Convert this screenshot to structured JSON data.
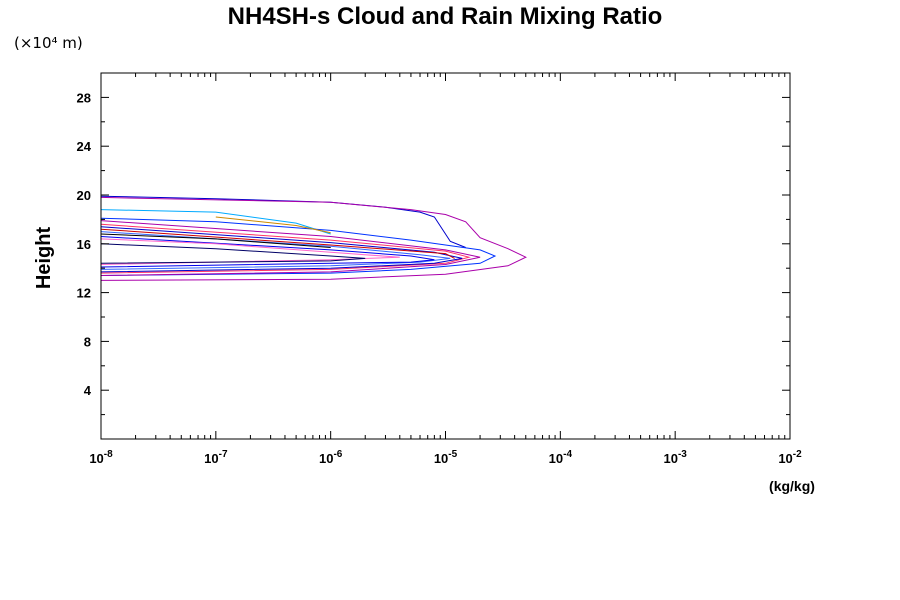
{
  "chart_data": {
    "type": "line",
    "title": "NH4SH-s Cloud and Rain Mixing Ratio",
    "ylabel": "Height",
    "y_scale_label": "(×10⁴ m)",
    "x_unit_label": "(kg/kg)",
    "x_scale": "log",
    "xlim": [
      1e-08,
      0.01
    ],
    "ylim": [
      0,
      30
    ],
    "x_tick_labels": [
      {
        "value": 1e-08,
        "base": "10",
        "exp": "-8"
      },
      {
        "value": 1e-07,
        "base": "10",
        "exp": "-7"
      },
      {
        "value": 1e-06,
        "base": "10",
        "exp": "-6"
      },
      {
        "value": 1e-05,
        "base": "10",
        "exp": "-5"
      },
      {
        "value": 0.0001,
        "base": "10",
        "exp": "-4"
      },
      {
        "value": 0.001,
        "base": "10",
        "exp": "-3"
      },
      {
        "value": 0.01,
        "base": "10",
        "exp": "-2"
      }
    ],
    "y_tick_labels": [
      "4",
      "8",
      "12",
      "16",
      "20",
      "24",
      "28"
    ],
    "y_tick_values": [
      4,
      8,
      12,
      16,
      20,
      24,
      28
    ],
    "grid": false,
    "series": [
      {
        "color": "#0000cc",
        "points": [
          [
            1e-08,
            19.9
          ],
          [
            1e-07,
            19.7
          ],
          [
            1e-06,
            19.4
          ],
          [
            3e-06,
            19.0
          ],
          [
            6e-06,
            18.6
          ],
          [
            8e-06,
            18.2
          ],
          [
            1.1e-05,
            16.2
          ],
          [
            1.5e-05,
            15.7
          ]
        ]
      },
      {
        "color": "#aa00aa",
        "points": [
          [
            1e-08,
            19.8
          ],
          [
            1e-06,
            19.4
          ],
          [
            5e-06,
            18.8
          ],
          [
            1e-05,
            18.4
          ],
          [
            1.5e-05,
            17.8
          ],
          [
            2e-05,
            16.5
          ],
          [
            3.5e-05,
            15.6
          ],
          [
            5e-05,
            14.9
          ],
          [
            3.5e-05,
            14.2
          ],
          [
            1e-05,
            13.5
          ],
          [
            1e-06,
            13.1
          ],
          [
            1e-08,
            13.0
          ]
        ]
      },
      {
        "color": "#00aaff",
        "points": [
          [
            1e-08,
            18.8
          ],
          [
            1e-07,
            18.6
          ],
          [
            5e-07,
            17.7
          ],
          [
            1e-06,
            16.8
          ]
        ]
      },
      {
        "color": "#0033ff",
        "points": [
          [
            1e-08,
            18.1
          ],
          [
            1e-07,
            17.8
          ],
          [
            1e-06,
            17.1
          ],
          [
            5e-06,
            16.3
          ],
          [
            2e-05,
            15.5
          ],
          [
            2.7e-05,
            15.0
          ],
          [
            2e-05,
            14.4
          ],
          [
            5e-06,
            13.9
          ],
          [
            1e-06,
            13.6
          ],
          [
            1e-08,
            13.4
          ]
        ]
      },
      {
        "color": "#aa00aa",
        "points": [
          [
            1e-08,
            17.9
          ],
          [
            1e-06,
            16.6
          ],
          [
            1e-05,
            15.5
          ],
          [
            2e-05,
            14.9
          ],
          [
            1e-05,
            14.3
          ],
          [
            1e-06,
            13.7
          ],
          [
            1e-08,
            13.4
          ]
        ]
      },
      {
        "color": "#ff3366",
        "points": [
          [
            1e-08,
            17.6
          ],
          [
            1e-06,
            16.3
          ],
          [
            1e-05,
            15.4
          ],
          [
            1.6e-05,
            14.9
          ],
          [
            1e-05,
            14.4
          ],
          [
            1e-06,
            13.9
          ],
          [
            1e-08,
            13.6
          ]
        ]
      },
      {
        "color": "#0000cc",
        "points": [
          [
            1e-08,
            17.4
          ],
          [
            1e-06,
            16.1
          ],
          [
            8e-06,
            15.3
          ],
          [
            1.4e-05,
            14.8
          ],
          [
            8e-06,
            14.4
          ],
          [
            1e-06,
            14.0
          ],
          [
            1e-08,
            13.7
          ]
        ]
      },
      {
        "color": "#3366ff",
        "points": [
          [
            1e-08,
            17.0
          ],
          [
            1e-06,
            15.8
          ],
          [
            6e-06,
            15.1
          ],
          [
            1.1e-05,
            14.8
          ],
          [
            6e-06,
            14.5
          ],
          [
            1e-06,
            14.2
          ],
          [
            1e-08,
            13.9
          ]
        ]
      },
      {
        "color": "#0000ee",
        "points": [
          [
            1e-08,
            16.6
          ],
          [
            1e-06,
            15.5
          ],
          [
            5e-06,
            15.0
          ],
          [
            8e-06,
            14.7
          ],
          [
            5e-06,
            14.5
          ],
          [
            1e-06,
            14.4
          ],
          [
            1e-08,
            14.1
          ]
        ]
      },
      {
        "color": "#ff66cc",
        "points": [
          [
            1e-08,
            16.4
          ],
          [
            1e-07,
            16.0
          ],
          [
            1e-06,
            15.3
          ],
          [
            4e-06,
            14.9
          ],
          [
            1e-06,
            14.7
          ],
          [
            1e-08,
            14.3
          ]
        ]
      },
      {
        "color": "#000066",
        "points": [
          [
            1e-08,
            16.0
          ],
          [
            1e-07,
            15.6
          ],
          [
            1e-06,
            15.0
          ],
          [
            2e-06,
            14.8
          ],
          [
            1e-06,
            14.6
          ],
          [
            1e-08,
            14.4
          ]
        ]
      },
      {
        "color": "#000000",
        "points": [
          [
            1e-08,
            16.8
          ],
          [
            1e-07,
            16.4
          ],
          [
            1e-06,
            15.7
          ]
        ]
      },
      {
        "color": "#cc8800",
        "points": [
          [
            1e-07,
            18.2
          ],
          [
            5e-07,
            17.5
          ],
          [
            1e-06,
            16.9
          ]
        ]
      },
      {
        "color": "#cc0000",
        "points": [
          [
            1e-08,
            17.2
          ],
          [
            1e-06,
            15.9
          ],
          [
            1e-05,
            15.2
          ],
          [
            1.2e-05,
            14.8
          ]
        ]
      }
    ]
  }
}
